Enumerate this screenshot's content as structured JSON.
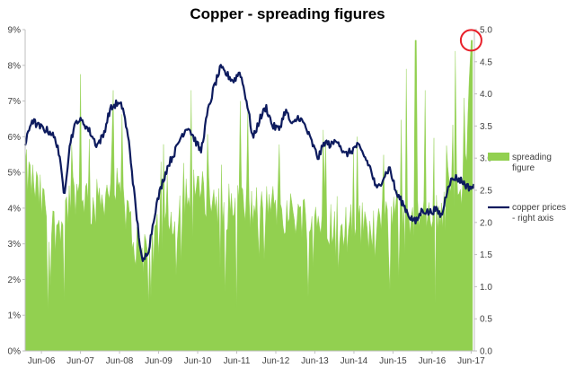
{
  "chart_data": {
    "type": "area",
    "title": "Copper - spreading figures",
    "x_ticks": [
      "Jun-06",
      "Jun-07",
      "Jun-08",
      "Jun-09",
      "Jun-10",
      "Jun-11",
      "Jun-12",
      "Jun-13",
      "Jun-14",
      "Jun-15",
      "Jun-16",
      "Jun-17"
    ],
    "x_range": [
      "2006-01",
      "2017-07"
    ],
    "y_left": {
      "ticks": [
        "0%",
        "1%",
        "2%",
        "3%",
        "4%",
        "5%",
        "6%",
        "7%",
        "8%",
        "9%"
      ],
      "range": [
        0,
        9
      ],
      "unit": "%"
    },
    "y_right": {
      "ticks": [
        "0.0",
        "0.5",
        "1.0",
        "1.5",
        "2.0",
        "2.5",
        "3.0",
        "3.5",
        "4.0",
        "4.5",
        "5.0"
      ],
      "range": [
        0,
        5
      ]
    },
    "grid": false,
    "legend_position": "right",
    "series": [
      {
        "name": "spreading figure",
        "axis": "left",
        "kind": "area",
        "color": "#92D050",
        "points": [
          [
            "2006-01",
            5.0
          ],
          [
            "2006-04",
            4.6
          ],
          [
            "2006-07",
            4.0
          ],
          [
            "2006-10",
            3.4
          ],
          [
            "2007-01",
            3.9
          ],
          [
            "2007-04",
            4.5
          ],
          [
            "2007-07",
            4.4
          ],
          [
            "2007-10",
            4.0
          ],
          [
            "2008-01",
            4.4
          ],
          [
            "2008-04",
            4.6
          ],
          [
            "2008-07",
            4.2
          ],
          [
            "2008-10",
            3.3
          ],
          [
            "2009-01",
            2.8
          ],
          [
            "2009-04",
            3.0
          ],
          [
            "2009-07",
            3.3
          ],
          [
            "2009-10",
            3.8
          ],
          [
            "2010-01",
            4.2
          ],
          [
            "2010-04",
            4.6
          ],
          [
            "2010-07",
            4.4
          ],
          [
            "2010-10",
            4.3
          ],
          [
            "2011-01",
            4.1
          ],
          [
            "2011-04",
            4.0
          ],
          [
            "2011-07",
            4.2
          ],
          [
            "2011-10",
            3.9
          ],
          [
            "2012-01",
            4.0
          ],
          [
            "2012-04",
            4.1
          ],
          [
            "2012-07",
            4.0
          ],
          [
            "2012-10",
            3.8
          ],
          [
            "2013-01",
            3.9
          ],
          [
            "2013-04",
            3.7
          ],
          [
            "2013-07",
            3.8
          ],
          [
            "2013-10",
            3.6
          ],
          [
            "2014-01",
            3.7
          ],
          [
            "2014-04",
            3.4
          ],
          [
            "2014-07",
            3.6
          ],
          [
            "2014-10",
            3.5
          ],
          [
            "2015-01",
            3.6
          ],
          [
            "2015-04",
            3.8
          ],
          [
            "2015-07",
            4.1
          ],
          [
            "2015-10",
            3.9
          ],
          [
            "2016-01",
            3.8
          ],
          [
            "2016-04",
            3.6
          ],
          [
            "2016-07",
            3.9
          ],
          [
            "2016-10",
            4.0
          ],
          [
            "2017-01",
            4.4
          ],
          [
            "2017-04",
            4.6
          ],
          [
            "2017-06",
            8.7
          ]
        ],
        "peaks": [
          [
            "2007-06",
            7.75
          ],
          [
            "2008-04",
            7.3
          ],
          [
            "2010-04",
            7.3
          ],
          [
            "2011-07",
            7.0
          ],
          [
            "2014-07",
            6.0
          ],
          [
            "2015-10",
            7.9
          ],
          [
            "2016-01",
            8.7
          ],
          [
            "2016-04",
            7.3
          ],
          [
            "2016-07",
            8.8
          ],
          [
            "2017-01",
            8.4
          ],
          [
            "2017-06",
            8.7
          ]
        ],
        "troughs": [
          [
            "2006-08",
            1.1
          ],
          [
            "2007-01",
            1.4
          ],
          [
            "2009-03",
            1.3
          ],
          [
            "2011-06",
            1.2
          ],
          [
            "2013-04",
            1.5
          ],
          [
            "2015-05",
            1.7
          ],
          [
            "2016-07",
            1.3
          ]
        ]
      },
      {
        "name": "copper prices\n- right axis",
        "axis": "right",
        "kind": "line",
        "color": "#0D1B5E",
        "points": [
          [
            "2006-01",
            3.2
          ],
          [
            "2006-03",
            3.6
          ],
          [
            "2006-05",
            3.5
          ],
          [
            "2006-07",
            3.45
          ],
          [
            "2006-09",
            3.4
          ],
          [
            "2006-11",
            3.2
          ],
          [
            "2007-01",
            2.45
          ],
          [
            "2007-03",
            3.3
          ],
          [
            "2007-05",
            3.6
          ],
          [
            "2007-07",
            3.55
          ],
          [
            "2007-09",
            3.4
          ],
          [
            "2007-11",
            3.2
          ],
          [
            "2008-01",
            3.35
          ],
          [
            "2008-03",
            3.75
          ],
          [
            "2008-05",
            3.85
          ],
          [
            "2008-07",
            3.8
          ],
          [
            "2008-09",
            3.2
          ],
          [
            "2008-11",
            2.2
          ],
          [
            "2009-01",
            1.35
          ],
          [
            "2009-03",
            1.6
          ],
          [
            "2009-05",
            2.2
          ],
          [
            "2009-07",
            2.6
          ],
          [
            "2009-09",
            2.9
          ],
          [
            "2009-11",
            3.1
          ],
          [
            "2010-01",
            3.35
          ],
          [
            "2010-03",
            3.5
          ],
          [
            "2010-05",
            3.3
          ],
          [
            "2010-07",
            3.1
          ],
          [
            "2010-09",
            3.7
          ],
          [
            "2010-11",
            4.1
          ],
          [
            "2011-01",
            4.4
          ],
          [
            "2011-03",
            4.3
          ],
          [
            "2011-05",
            4.2
          ],
          [
            "2011-07",
            4.35
          ],
          [
            "2011-09",
            3.9
          ],
          [
            "2011-11",
            3.3
          ],
          [
            "2012-01",
            3.6
          ],
          [
            "2012-03",
            3.8
          ],
          [
            "2012-05",
            3.5
          ],
          [
            "2012-07",
            3.45
          ],
          [
            "2012-09",
            3.75
          ],
          [
            "2012-11",
            3.5
          ],
          [
            "2013-01",
            3.65
          ],
          [
            "2013-03",
            3.5
          ],
          [
            "2013-05",
            3.25
          ],
          [
            "2013-07",
            3.0
          ],
          [
            "2013-09",
            3.25
          ],
          [
            "2013-11",
            3.2
          ],
          [
            "2014-01",
            3.3
          ],
          [
            "2014-03",
            3.05
          ],
          [
            "2014-05",
            3.1
          ],
          [
            "2014-07",
            3.2
          ],
          [
            "2014-09",
            3.05
          ],
          [
            "2014-11",
            2.85
          ],
          [
            "2015-01",
            2.5
          ],
          [
            "2015-03",
            2.7
          ],
          [
            "2015-05",
            2.85
          ],
          [
            "2015-07",
            2.45
          ],
          [
            "2015-09",
            2.3
          ],
          [
            "2015-11",
            2.1
          ],
          [
            "2016-01",
            2.0
          ],
          [
            "2016-03",
            2.2
          ],
          [
            "2016-05",
            2.15
          ],
          [
            "2016-07",
            2.2
          ],
          [
            "2016-09",
            2.1
          ],
          [
            "2016-11",
            2.6
          ],
          [
            "2017-01",
            2.7
          ],
          [
            "2017-03",
            2.65
          ],
          [
            "2017-05",
            2.55
          ],
          [
            "2017-07",
            2.55
          ]
        ]
      }
    ],
    "annotations": [
      {
        "kind": "circle",
        "color": "#E8202A",
        "at": [
          "2017-06",
          8.7
        ],
        "axis": "left"
      }
    ]
  }
}
